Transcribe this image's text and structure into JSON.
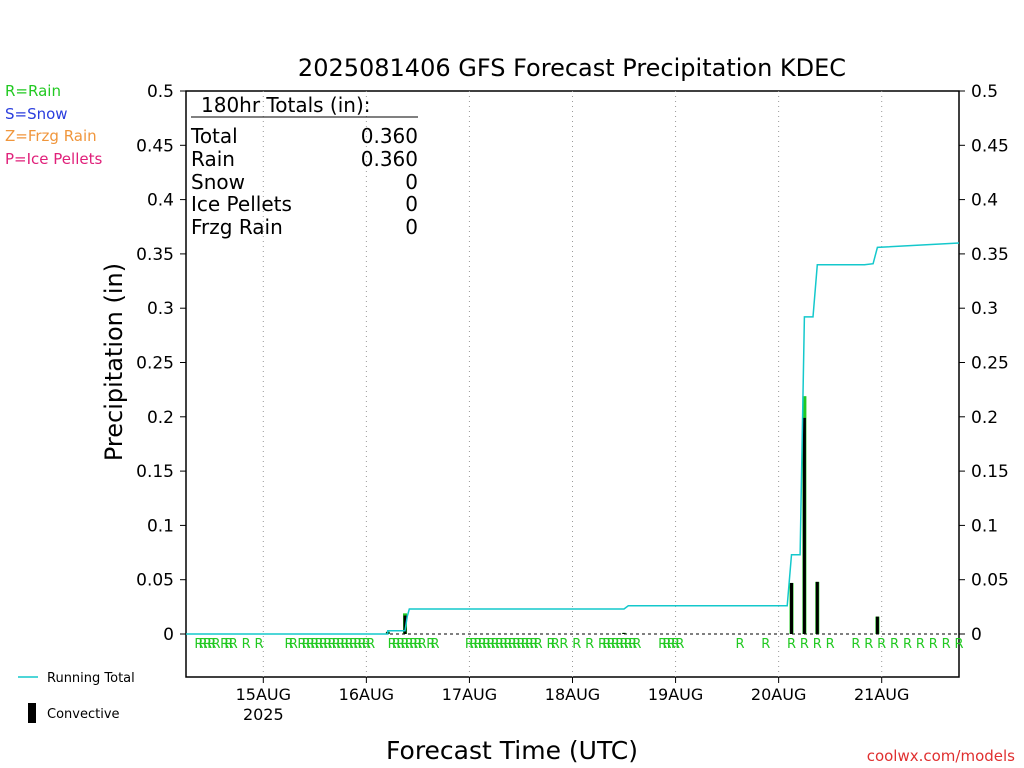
{
  "chart_data": {
    "type": "bar",
    "title": "2025081406 GFS Forecast Precipitation KDEC",
    "xlabel": "Forecast Time (UTC)",
    "ylabel": "Precipitation (in)",
    "ylim": [
      0,
      0.5
    ],
    "yticks": [
      0,
      0.05,
      0.1,
      0.15,
      0.2,
      0.25,
      0.3,
      0.35,
      0.4,
      0.45,
      0.5
    ],
    "ytick_labels": [
      "0",
      "0.05",
      "0.1",
      "0.15",
      "0.2",
      "0.25",
      "0.3",
      "0.35",
      "0.4",
      "0.45",
      "0.5"
    ],
    "x_range_hours": [
      0,
      180
    ],
    "x_ticks": [
      {
        "hour": 18,
        "label": "15AUG",
        "sublabel": "2025"
      },
      {
        "hour": 42,
        "label": "16AUG",
        "sublabel": ""
      },
      {
        "hour": 66,
        "label": "17AUG",
        "sublabel": ""
      },
      {
        "hour": 90,
        "label": "18AUG",
        "sublabel": ""
      },
      {
        "hour": 114,
        "label": "19AUG",
        "sublabel": ""
      },
      {
        "hour": 138,
        "label": "20AUG",
        "sublabel": ""
      },
      {
        "hour": 162,
        "label": "21AUG",
        "sublabel": ""
      }
    ],
    "grid": "vertical dotted at day ticks",
    "legend_types": [
      {
        "label": "R=Rain",
        "color": "#22c922"
      },
      {
        "label": "S=Snow",
        "color": "#2a3dde"
      },
      {
        "label": "Z=Frzg Rain",
        "color": "#f0963c"
      },
      {
        "label": "P=Ice Pellets",
        "color": "#e0207a"
      }
    ],
    "legend_series": [
      {
        "label": "Running Total",
        "color": "#14c8cc"
      },
      {
        "label": "Convective",
        "color": "#000000"
      }
    ],
    "totals_box": {
      "header": "180hr Totals (in):",
      "rows": [
        {
          "label": "Total",
          "value": "0.360"
        },
        {
          "label": "Rain",
          "value": "0.360"
        },
        {
          "label": "Snow",
          "value": "0"
        },
        {
          "label": "Ice Pellets",
          "value": "0"
        },
        {
          "label": "Frzg Rain",
          "value": "0"
        }
      ]
    },
    "series": [
      {
        "name": "Running Total",
        "color": "#14c8cc",
        "points": [
          [
            0,
            0
          ],
          [
            47,
            0
          ],
          [
            47,
            0.003
          ],
          [
            51,
            0.003
          ],
          [
            51.5,
            0.016
          ],
          [
            52,
            0.023
          ],
          [
            102,
            0.023
          ],
          [
            103,
            0.026
          ],
          [
            138,
            0.026
          ],
          [
            140,
            0.026
          ],
          [
            141,
            0.073
          ],
          [
            143,
            0.073
          ],
          [
            144,
            0.292
          ],
          [
            146,
            0.292
          ],
          [
            147,
            0.34
          ],
          [
            158,
            0.34
          ],
          [
            160,
            0.341
          ],
          [
            161,
            0.356
          ],
          [
            180,
            0.36
          ]
        ]
      }
    ],
    "bars": [
      {
        "hour": 47,
        "rain": 0.002,
        "convective": 0.002
      },
      {
        "hour": 51,
        "rain": 0.019,
        "convective": 0.017
      },
      {
        "hour": 102,
        "rain": 0.001,
        "convective": 0.001
      },
      {
        "hour": 141,
        "rain": 0.047,
        "convective": 0.047
      },
      {
        "hour": 144,
        "rain": 0.219,
        "convective": 0.199
      },
      {
        "hour": 147,
        "rain": 0.048,
        "convective": 0.048
      },
      {
        "hour": 161,
        "rain": 0.016,
        "convective": 0.016
      }
    ],
    "precip_type_markers": {
      "symbol": "R",
      "color": "#22c922",
      "hours": [
        3,
        4,
        5,
        6,
        7,
        9,
        10,
        11,
        14,
        17,
        24,
        25,
        27,
        28,
        29,
        30,
        31,
        32,
        33,
        34,
        35,
        36,
        37,
        38,
        39,
        40,
        41,
        42,
        43,
        48,
        49,
        50,
        51,
        52,
        53,
        54,
        55,
        57,
        58,
        66,
        67,
        68,
        69,
        70,
        71,
        72,
        73,
        74,
        75,
        76,
        77,
        78,
        79,
        80,
        81,
        82,
        85,
        86,
        88,
        91,
        94,
        97,
        98,
        99,
        100,
        101,
        102,
        103,
        104,
        105,
        111,
        112,
        113,
        114,
        115,
        129,
        135,
        141,
        144,
        147,
        150,
        156,
        159,
        162,
        165,
        168,
        171,
        174,
        177,
        180
      ]
    },
    "footer_credit": "coolwx.com/models"
  }
}
